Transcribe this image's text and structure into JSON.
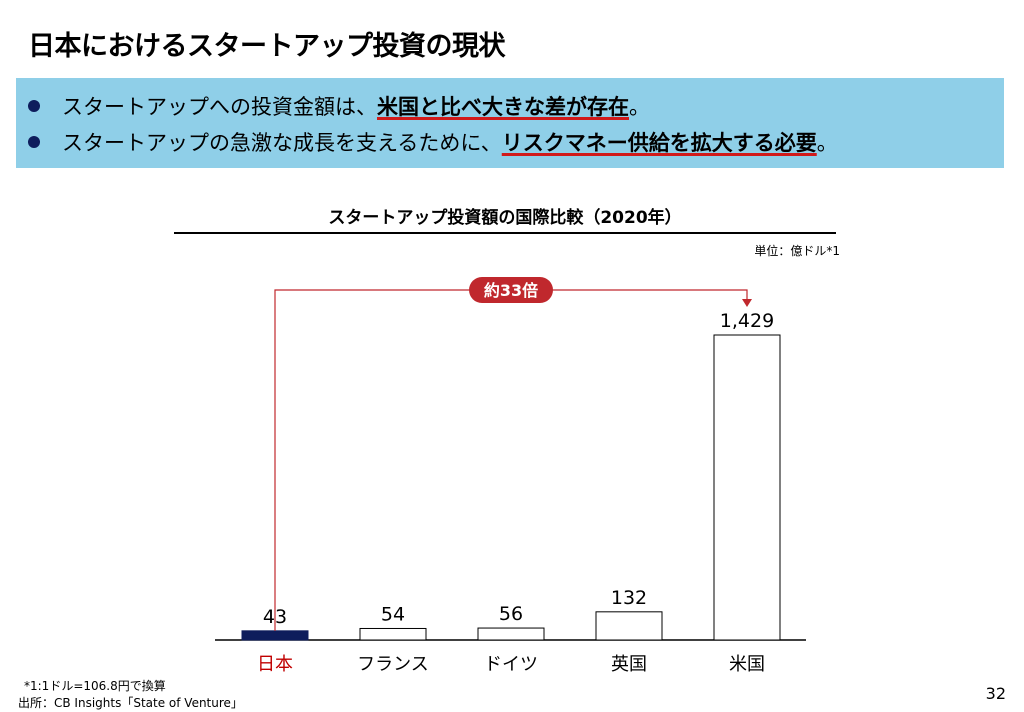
{
  "slide": {
    "title": "日本におけるスタートアップ投資の現状",
    "page_number": "32"
  },
  "summary": {
    "bullets": [
      {
        "prefix": "スタートアップへの投資金額は、",
        "emphasis": "米国と比べ大きな差が存在",
        "suffix": "。"
      },
      {
        "prefix": "スタートアップの急激な成長を支えるために、",
        "emphasis": "リスクマネー供給を拡大する必要",
        "suffix": "。"
      }
    ]
  },
  "chart_data": {
    "type": "bar",
    "title": "スタートアップ投資額の国際比較（2020年）",
    "unit_label": "単位：億ドル*1",
    "categories": [
      "日本",
      "フランス",
      "ドイツ",
      "英国",
      "米国"
    ],
    "values": [
      43,
      54,
      56,
      132,
      1429
    ],
    "data_labels": [
      "43",
      "54",
      "56",
      "132",
      "1,429"
    ],
    "ylim": [
      0,
      1429
    ],
    "grid": false,
    "colors": {
      "highlight_bar": "#0e1d5c",
      "bar_fill": "#ffffff",
      "bar_stroke": "#000000",
      "highlight_label": "#c00000",
      "annotation": "#c0282d"
    },
    "annotation": {
      "label": "約33倍",
      "from": "日本",
      "to": "米国"
    }
  },
  "footnotes": {
    "note1": "*1:1ドル=106.8円で換算",
    "source": "出所：CB Insights「State of Venture」"
  }
}
